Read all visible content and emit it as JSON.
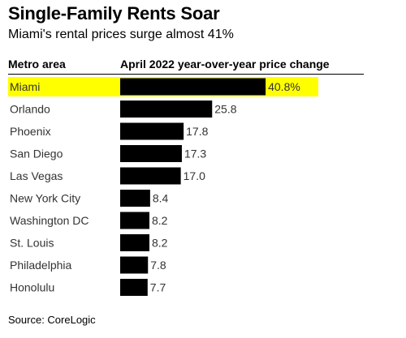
{
  "chart_data": {
    "type": "bar",
    "orientation": "horizontal",
    "title": "Single-Family Rents Soar",
    "subtitle": "Miami's rental prices surge almost 41%",
    "category_header": "Metro area",
    "value_header": "April 2022 year-over-year price change",
    "categories": [
      "Miami",
      "Orlando",
      "Phoenix",
      "San Diego",
      "Las Vegas",
      "New York City",
      "Washington DC",
      "St. Louis",
      "Philadelphia",
      "Honolulu"
    ],
    "values": [
      40.8,
      25.8,
      17.8,
      17.3,
      17.0,
      8.4,
      8.2,
      8.2,
      7.8,
      7.7
    ],
    "value_labels": [
      "40.8%",
      "25.8",
      "17.8",
      "17.3",
      "17.0",
      "8.4",
      "8.2",
      "8.2",
      "7.8",
      "7.7"
    ],
    "highlighted_category": "Miami",
    "source": "Source: CoreLogic",
    "grid": false,
    "legend": "none"
  },
  "colors": {
    "bar": "#000000",
    "highlight": "#ffff00",
    "text": "#000000",
    "label_text": "#333333"
  }
}
